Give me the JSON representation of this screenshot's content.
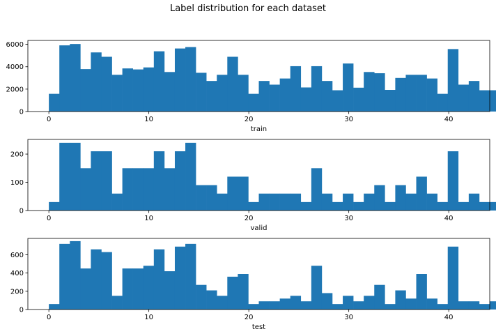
{
  "figure": {
    "suptitle": "Label distribution for each dataset"
  },
  "chart_data": [
    {
      "type": "bar",
      "xlabel": "train",
      "ylabel": "",
      "bar_color": "#1f77b4",
      "xlim": [
        -2.1,
        44.1
      ],
      "ylim": [
        0,
        6350
      ],
      "xticks": [
        0,
        10,
        20,
        30,
        40
      ],
      "yticks": [
        0,
        2000,
        4000,
        6000
      ],
      "bin_edges_start": 0,
      "bin_width": 1.05,
      "values": [
        1580,
        5910,
        6030,
        3790,
        5280,
        4890,
        3280,
        3850,
        3760,
        3940,
        5380,
        3530,
        5630,
        5760,
        3460,
        2730,
        3280,
        4890,
        3280,
        1580,
        2730,
        2400,
        2950,
        4050,
        2150,
        4050,
        2730,
        1900,
        4290,
        2130,
        3530,
        3420,
        1930,
        3000,
        3280,
        3280,
        2950,
        1580,
        5580,
        2400,
        2730,
        1900,
        1900
      ]
    },
    {
      "type": "bar",
      "xlabel": "valid",
      "ylabel": "",
      "bar_color": "#1f77b4",
      "xlim": [
        -2.1,
        44.1
      ],
      "ylim": [
        0,
        252
      ],
      "xticks": [
        0,
        10,
        20,
        30,
        40
      ],
      "yticks": [
        0,
        100,
        200
      ],
      "bin_edges_start": 0,
      "bin_width": 1.05,
      "values": [
        30,
        240,
        240,
        150,
        210,
        210,
        60,
        150,
        150,
        150,
        210,
        150,
        210,
        240,
        90,
        90,
        60,
        120,
        120,
        30,
        60,
        60,
        60,
        60,
        30,
        150,
        60,
        30,
        60,
        30,
        60,
        90,
        30,
        90,
        60,
        120,
        60,
        30,
        210,
        30,
        60,
        30,
        30
      ]
    },
    {
      "type": "bar",
      "xlabel": "test",
      "ylabel": "",
      "bar_color": "#1f77b4",
      "xlim": [
        -2.1,
        44.1
      ],
      "ylim": [
        0,
        780
      ],
      "xticks": [
        0,
        10,
        20,
        30,
        40
      ],
      "yticks": [
        0,
        200,
        400,
        600
      ],
      "bin_edges_start": 0,
      "bin_width": 1.05,
      "values": [
        60,
        720,
        750,
        450,
        660,
        630,
        150,
        450,
        450,
        480,
        660,
        420,
        690,
        720,
        270,
        210,
        150,
        360,
        390,
        60,
        90,
        90,
        120,
        150,
        90,
        480,
        180,
        60,
        150,
        90,
        150,
        270,
        60,
        210,
        120,
        390,
        120,
        60,
        690,
        90,
        90,
        60,
        90
      ]
    }
  ]
}
